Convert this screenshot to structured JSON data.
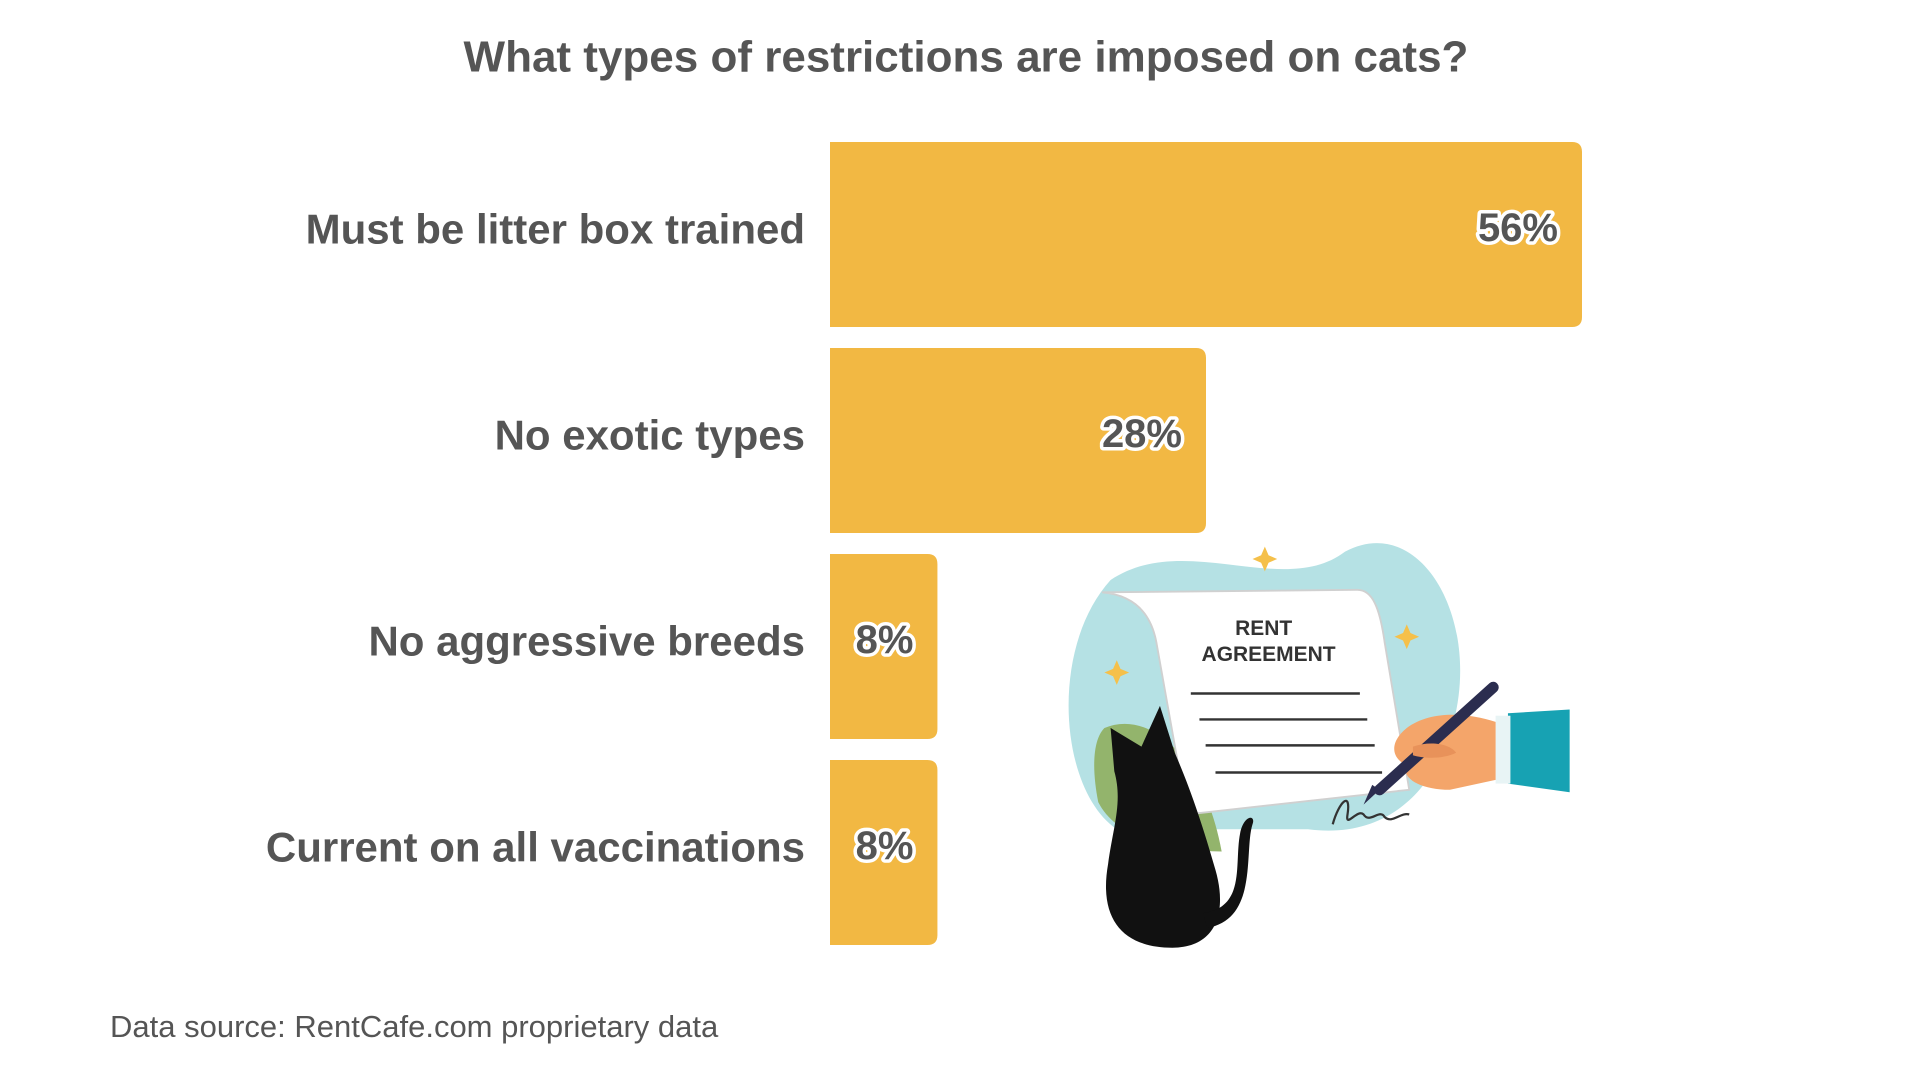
{
  "chart_data": {
    "type": "bar",
    "orientation": "horizontal",
    "title": "What types of restrictions are imposed on cats?",
    "categories": [
      "Must be litter box trained",
      "No exotic types",
      "No aggressive breeds",
      "Current on all vaccinations"
    ],
    "values": [
      56,
      28,
      8,
      8
    ],
    "value_labels": [
      "56%",
      "28%",
      "8%",
      "8%"
    ],
    "color": "#f2b843",
    "source": "Data source: RentCafe.com proprietary data",
    "illustration_text": [
      "RENT",
      "AGREEMENT"
    ]
  }
}
